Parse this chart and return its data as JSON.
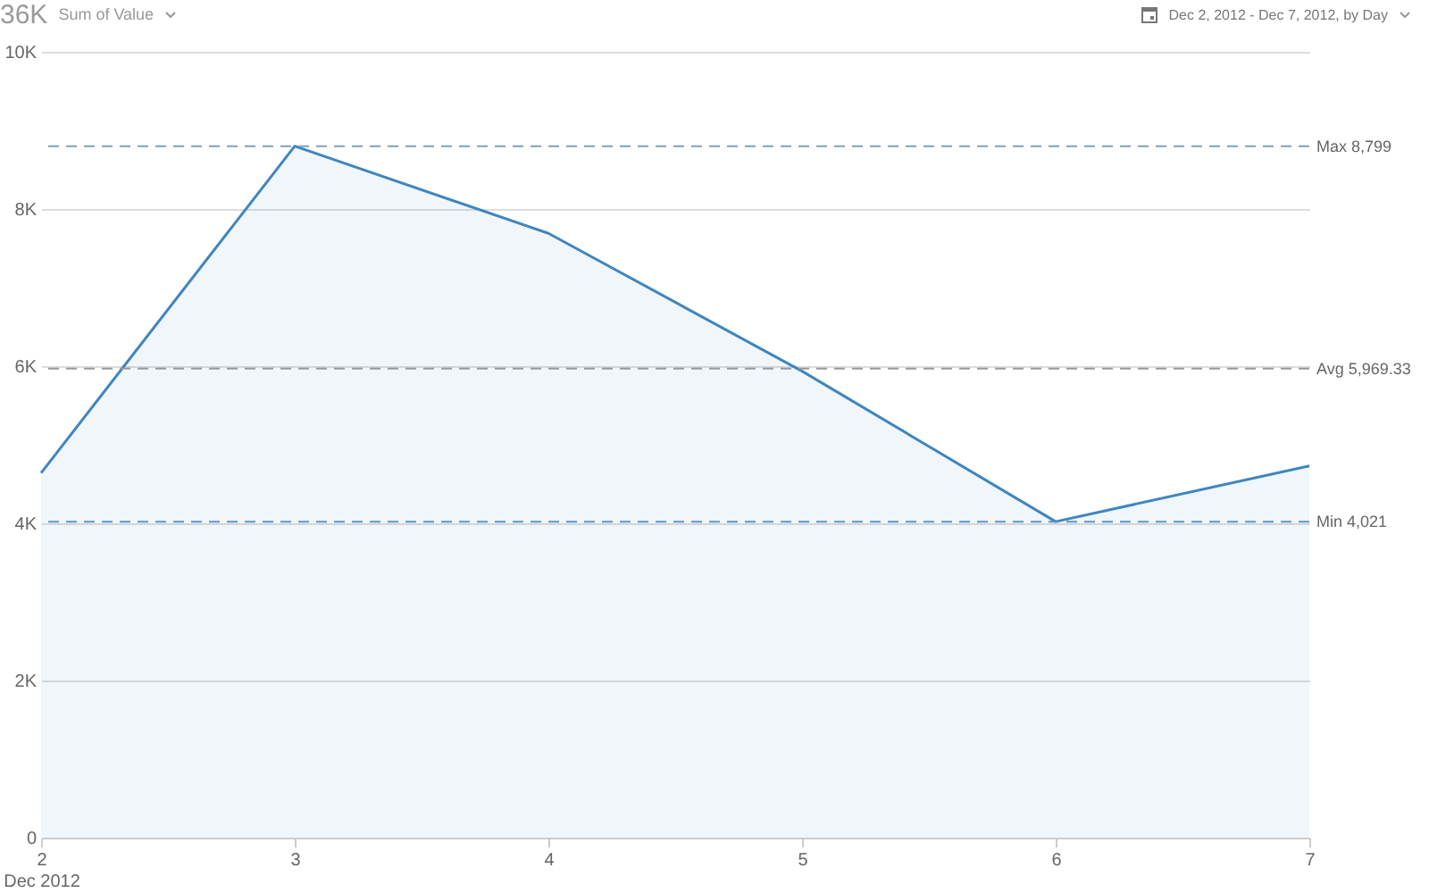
{
  "chart_data": {
    "type": "area",
    "title": "36K",
    "subtitle": "Sum of Value",
    "annotations": [
      "Dec 2, 2012 - Dec 7, 2012, by Day"
    ],
    "x": [
      "2012-12-02",
      "2012-12-03",
      "2012-12-04",
      "2012-12-05",
      "2012-12-06",
      "2012-12-07"
    ],
    "series": [
      {
        "color": "#3f86bf",
        "values": [
          4640,
          8799,
          7690,
          5936,
          4021,
          4730
        ]
      }
    ],
    "xlim": [
      "2012-12-02",
      "2012-12-07"
    ],
    "xticks": [
      {
        "value": "2012-12-02",
        "label": "2\nDec 2012"
      },
      {
        "value": "2012-12-03",
        "label": "3"
      },
      {
        "value": "2012-12-04",
        "label": "4"
      },
      {
        "value": "2012-12-05",
        "label": "5"
      },
      {
        "value": "2012-12-06",
        "label": "6"
      },
      {
        "value": "2012-12-07",
        "label": "7"
      }
    ],
    "ylim": [
      0,
      10000
    ],
    "yticks": [
      0,
      {
        "value": 2000,
        "label": "2K"
      },
      {
        "value": 4000,
        "label": "4K"
      },
      {
        "value": 6000,
        "label": "6K"
      },
      {
        "value": 8000,
        "label": "8K"
      },
      {
        "value": 10000,
        "label": "10K"
      }
    ],
    "ref_lines": [
      {
        "axis": "y",
        "value": 8799,
        "label": "Max 8,799",
        "color": "#7f9fbf",
        "line_style": "dashed"
      },
      {
        "axis": "y",
        "value": 5969.33,
        "label": "Avg 5,969.33",
        "color": "#999999",
        "line_style": "dashed"
      },
      {
        "axis": "y",
        "value": 4021,
        "label": "Min 4,021",
        "color": "#5b95c9",
        "line_style": "dashed"
      }
    ],
    "grid": "y",
    "line_style": "solid"
  }
}
